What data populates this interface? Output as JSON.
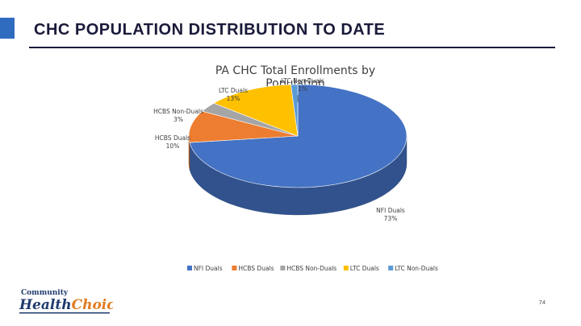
{
  "slide": {
    "title": "CHC POPULATION DISTRIBUTION TO DATE",
    "page_number": "74"
  },
  "logo": {
    "line1": "Community",
    "line2a": "Health",
    "line2b": "Choices"
  },
  "colors": {
    "accent": "#2f6bbf",
    "title_text": "#1a1a3a"
  },
  "chart_data": {
    "type": "pie",
    "title_line1": "PA CHC Total Enrollments by",
    "title_line2": "Population",
    "style": "3d",
    "legend_placement": "bottom",
    "slices": [
      {
        "name": "NFI Duals",
        "value": 73,
        "label": "73%",
        "color": "#4472c4"
      },
      {
        "name": "HCBS Duals",
        "value": 10,
        "label": "10%",
        "color": "#ed7d31"
      },
      {
        "name": "HCBS Non-Duals",
        "value": 3,
        "label": "3%",
        "color": "#a5a5a5"
      },
      {
        "name": "LTC Duals",
        "value": 13,
        "label": "13%",
        "color": "#ffc000"
      },
      {
        "name": "LTC Non-Duals",
        "value": 1,
        "label": "1%",
        "color": "#5b9bd5"
      }
    ],
    "slice_label_names": [
      "NFI Duals",
      "HCBS Duals",
      "HCBS Non-Duals",
      "LTC Duals",
      "LTC Non-Duals"
    ],
    "legend": [
      "NFI Duals",
      "HCBS Duals",
      "HCBS Non-Duals",
      "LTC Duals",
      "LTC Non-Duals"
    ]
  }
}
